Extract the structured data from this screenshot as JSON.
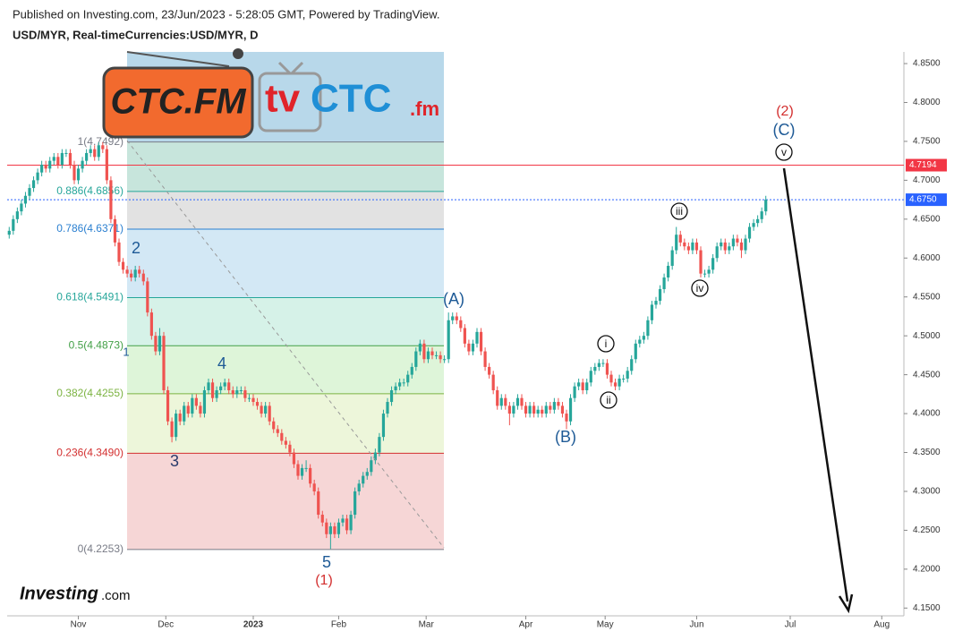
{
  "header": {
    "published": "Published on Investing.com, 23/Jun/2023 - 5:28:05 GMT, Powered by TradingView."
  },
  "logos": {
    "ctc": "CTC.FM",
    "tv": "tv",
    "tvctc": "CTC",
    "fm": ".fm",
    "investing": "Investing",
    "com": ".com"
  },
  "chart_data": {
    "type": "candlestick",
    "title": "USD/MYR, Real-timeCurrencies:USD/MYR, D",
    "up_color": "#26a69a",
    "down_color": "#ef5350",
    "open": [
      4.63,
      4.635,
      4.65,
      4.66,
      4.67,
      4.68,
      4.69,
      4.7,
      4.71,
      4.72,
      4.715,
      4.725,
      4.73,
      4.72,
      4.735,
      4.735,
      4.72,
      4.7,
      4.715,
      4.725,
      4.735,
      4.74,
      4.73,
      4.745,
      4.74,
      4.7,
      4.65,
      4.62,
      4.595,
      4.585,
      4.58,
      4.575,
      4.585,
      4.58,
      4.57,
      4.53,
      4.5,
      4.48,
      4.5,
      4.43,
      4.39,
      4.37,
      4.4,
      4.39,
      4.41,
      4.4,
      4.42,
      4.41,
      4.4,
      4.43,
      4.44,
      4.42,
      4.43,
      4.435,
      4.44,
      4.43,
      4.425,
      4.43,
      4.43,
      4.42,
      4.42,
      4.415,
      4.41,
      4.4,
      4.41,
      4.39,
      4.38,
      4.375,
      4.365,
      4.36,
      4.35,
      4.335,
      4.32,
      4.33,
      4.33,
      4.31,
      4.3,
      4.27,
      4.26,
      4.245,
      4.255,
      4.245,
      4.26,
      4.265,
      4.25,
      4.27,
      4.3,
      4.31,
      4.32,
      4.325,
      4.34,
      4.35,
      4.37,
      4.4,
      4.415,
      4.43,
      4.435,
      4.44,
      4.44,
      4.45,
      4.46,
      4.48,
      4.49,
      4.47,
      4.48,
      4.475,
      4.475,
      4.47,
      4.47,
      4.52,
      4.525,
      4.52,
      4.51,
      4.49,
      4.48,
      4.49,
      4.505,
      4.48,
      4.46,
      4.45,
      4.43,
      4.41,
      4.42,
      4.41,
      4.4,
      4.41,
      4.42,
      4.41,
      4.4,
      4.41,
      4.4,
      4.405,
      4.4,
      4.41,
      4.405,
      4.415,
      4.41,
      4.4,
      4.39,
      4.42,
      4.435,
      4.44,
      4.43,
      4.44,
      4.455,
      4.46,
      4.465,
      4.465,
      4.45,
      4.44,
      4.435,
      4.445,
      4.445,
      4.455,
      4.47,
      4.49,
      4.495,
      4.5,
      4.52,
      4.54,
      4.545,
      4.56,
      4.575,
      4.59,
      4.61,
      4.63,
      4.62,
      4.615,
      4.61,
      4.62,
      4.61,
      4.58,
      4.58,
      4.585,
      4.6,
      4.615,
      4.62,
      4.61,
      4.615,
      4.625,
      4.62,
      4.61,
      4.625,
      4.64,
      4.645,
      4.65,
      4.66
    ],
    "high": [
      4.64,
      4.655,
      4.665,
      4.675,
      4.685,
      4.695,
      4.705,
      4.715,
      4.725,
      4.725,
      4.73,
      4.735,
      4.735,
      4.74,
      4.74,
      4.74,
      4.725,
      4.72,
      4.73,
      4.74,
      4.745,
      4.745,
      4.749,
      4.749,
      4.745,
      4.705,
      4.655,
      4.625,
      4.6,
      4.59,
      4.585,
      4.59,
      4.59,
      4.585,
      4.575,
      4.535,
      4.505,
      4.51,
      4.505,
      4.435,
      4.395,
      4.405,
      4.405,
      4.415,
      4.415,
      4.425,
      4.425,
      4.415,
      4.435,
      4.445,
      4.445,
      4.435,
      4.44,
      4.445,
      4.445,
      4.435,
      4.435,
      4.435,
      4.435,
      4.425,
      4.425,
      4.42,
      4.415,
      4.415,
      4.415,
      4.395,
      4.385,
      4.38,
      4.37,
      4.365,
      4.355,
      4.34,
      4.335,
      4.34,
      4.335,
      4.315,
      4.305,
      4.275,
      4.265,
      4.26,
      4.26,
      4.265,
      4.27,
      4.27,
      4.275,
      4.305,
      4.315,
      4.325,
      4.33,
      4.345,
      4.355,
      4.375,
      4.405,
      4.42,
      4.435,
      4.44,
      4.445,
      4.445,
      4.455,
      4.465,
      4.485,
      4.495,
      4.495,
      4.485,
      4.485,
      4.48,
      4.48,
      4.475,
      4.53,
      4.53,
      4.53,
      4.525,
      4.515,
      4.495,
      4.495,
      4.51,
      4.51,
      4.485,
      4.465,
      4.455,
      4.435,
      4.425,
      4.425,
      4.415,
      4.415,
      4.425,
      4.425,
      4.415,
      4.415,
      4.415,
      4.41,
      4.41,
      4.415,
      4.415,
      4.42,
      4.42,
      4.415,
      4.405,
      4.425,
      4.44,
      4.445,
      4.445,
      4.445,
      4.46,
      4.465,
      4.47,
      4.47,
      4.47,
      4.455,
      4.445,
      4.45,
      4.45,
      4.46,
      4.475,
      4.495,
      4.5,
      4.505,
      4.525,
      4.545,
      4.55,
      4.565,
      4.58,
      4.595,
      4.615,
      4.64,
      4.635,
      4.625,
      4.62,
      4.625,
      4.625,
      4.615,
      4.585,
      4.59,
      4.605,
      4.62,
      4.625,
      4.625,
      4.62,
      4.63,
      4.63,
      4.625,
      4.63,
      4.645,
      4.65,
      4.655,
      4.665,
      4.68
    ],
    "low": [
      4.625,
      4.63,
      4.645,
      4.655,
      4.665,
      4.675,
      4.685,
      4.695,
      4.705,
      4.71,
      4.71,
      4.72,
      4.715,
      4.715,
      4.73,
      4.715,
      4.695,
      4.695,
      4.71,
      4.72,
      4.73,
      4.725,
      4.725,
      4.735,
      4.695,
      4.645,
      4.615,
      4.59,
      4.58,
      4.575,
      4.57,
      4.57,
      4.575,
      4.565,
      4.525,
      4.495,
      4.475,
      4.475,
      4.425,
      4.385,
      4.363,
      4.365,
      4.385,
      4.385,
      4.395,
      4.395,
      4.405,
      4.395,
      4.395,
      4.425,
      4.415,
      4.415,
      4.425,
      4.43,
      4.425,
      4.42,
      4.42,
      4.425,
      4.415,
      4.415,
      4.41,
      4.405,
      4.395,
      4.395,
      4.385,
      4.375,
      4.37,
      4.36,
      4.355,
      4.345,
      4.33,
      4.315,
      4.315,
      4.325,
      4.305,
      4.295,
      4.265,
      4.255,
      4.24,
      4.226,
      4.24,
      4.24,
      4.255,
      4.245,
      4.245,
      4.265,
      4.295,
      4.305,
      4.315,
      4.32,
      4.335,
      4.345,
      4.365,
      4.395,
      4.41,
      4.425,
      4.43,
      4.435,
      4.435,
      4.445,
      4.455,
      4.475,
      4.465,
      4.465,
      4.47,
      4.47,
      4.465,
      4.465,
      4.465,
      4.515,
      4.515,
      4.505,
      4.485,
      4.475,
      4.475,
      4.485,
      4.475,
      4.455,
      4.445,
      4.425,
      4.405,
      4.405,
      4.405,
      4.385,
      4.395,
      4.405,
      4.405,
      4.395,
      4.395,
      4.395,
      4.395,
      4.395,
      4.395,
      4.4,
      4.4,
      4.405,
      4.395,
      4.38,
      4.385,
      4.415,
      4.43,
      4.425,
      4.425,
      4.435,
      4.45,
      4.455,
      4.46,
      4.445,
      4.435,
      4.43,
      4.43,
      4.44,
      4.44,
      4.45,
      4.465,
      4.485,
      4.49,
      4.495,
      4.515,
      4.535,
      4.54,
      4.555,
      4.57,
      4.585,
      4.605,
      4.615,
      4.61,
      4.605,
      4.605,
      4.605,
      4.575,
      4.575,
      4.575,
      4.58,
      4.595,
      4.61,
      4.605,
      4.605,
      4.61,
      4.615,
      4.6,
      4.605,
      4.62,
      4.635,
      4.64,
      4.645,
      4.655
    ],
    "close": [
      4.635,
      4.65,
      4.66,
      4.67,
      4.68,
      4.69,
      4.7,
      4.71,
      4.72,
      4.715,
      4.725,
      4.73,
      4.72,
      4.735,
      4.735,
      4.72,
      4.7,
      4.715,
      4.725,
      4.735,
      4.74,
      4.73,
      4.745,
      4.74,
      4.7,
      4.65,
      4.62,
      4.595,
      4.585,
      4.58,
      4.575,
      4.585,
      4.58,
      4.57,
      4.53,
      4.5,
      4.48,
      4.5,
      4.43,
      4.39,
      4.37,
      4.4,
      4.39,
      4.41,
      4.4,
      4.42,
      4.41,
      4.4,
      4.43,
      4.44,
      4.42,
      4.43,
      4.435,
      4.44,
      4.43,
      4.425,
      4.43,
      4.43,
      4.42,
      4.42,
      4.415,
      4.41,
      4.4,
      4.41,
      4.39,
      4.38,
      4.375,
      4.365,
      4.36,
      4.35,
      4.335,
      4.32,
      4.33,
      4.33,
      4.31,
      4.3,
      4.27,
      4.26,
      4.245,
      4.255,
      4.245,
      4.26,
      4.265,
      4.25,
      4.27,
      4.3,
      4.31,
      4.32,
      4.325,
      4.34,
      4.35,
      4.37,
      4.4,
      4.415,
      4.43,
      4.435,
      4.44,
      4.44,
      4.45,
      4.46,
      4.48,
      4.49,
      4.47,
      4.48,
      4.475,
      4.475,
      4.47,
      4.47,
      4.52,
      4.525,
      4.52,
      4.51,
      4.49,
      4.48,
      4.49,
      4.505,
      4.48,
      4.46,
      4.45,
      4.43,
      4.41,
      4.42,
      4.41,
      4.4,
      4.41,
      4.42,
      4.41,
      4.4,
      4.41,
      4.4,
      4.405,
      4.4,
      4.41,
      4.405,
      4.415,
      4.41,
      4.4,
      4.39,
      4.42,
      4.435,
      4.44,
      4.43,
      4.44,
      4.455,
      4.46,
      4.465,
      4.465,
      4.45,
      4.44,
      4.435,
      4.445,
      4.445,
      4.455,
      4.47,
      4.49,
      4.495,
      4.5,
      4.52,
      4.54,
      4.545,
      4.56,
      4.575,
      4.59,
      4.61,
      4.63,
      4.62,
      4.615,
      4.61,
      4.62,
      4.61,
      4.58,
      4.58,
      4.585,
      4.6,
      4.615,
      4.62,
      4.61,
      4.615,
      4.625,
      4.62,
      4.61,
      4.625,
      4.64,
      4.645,
      4.65,
      4.66,
      4.675
    ],
    "xlim": [
      -0.5,
      219.5
    ],
    "xticks": [
      {
        "value": 17,
        "label": "Nov"
      },
      {
        "value": 38.5,
        "label": "Dec"
      },
      {
        "value": 60,
        "label": "2023"
      },
      {
        "value": 81,
        "label": "Feb"
      },
      {
        "value": 102.5,
        "label": "Mar"
      },
      {
        "value": 127,
        "label": "Apr"
      },
      {
        "value": 146.5,
        "label": "May"
      },
      {
        "value": 169,
        "label": "Jun"
      },
      {
        "value": 192,
        "label": "Jul"
      },
      {
        "value": 214.5,
        "label": "Aug"
      }
    ],
    "ylim": [
      4.14,
      4.865
    ],
    "yticks": [
      {
        "value": 4.15,
        "label": "4.1500"
      },
      {
        "value": 4.2,
        "label": "4.2000"
      },
      {
        "value": 4.25,
        "label": "4.2500"
      },
      {
        "value": 4.3,
        "label": "4.3000"
      },
      {
        "value": 4.35,
        "label": "4.3500"
      },
      {
        "value": 4.4,
        "label": "4.4000"
      },
      {
        "value": 4.45,
        "label": "4.4500"
      },
      {
        "value": 4.5,
        "label": "4.5000"
      },
      {
        "value": 4.55,
        "label": "4.5500"
      },
      {
        "value": 4.6,
        "label": "4.6000"
      },
      {
        "value": 4.65,
        "label": "4.6500"
      },
      {
        "value": 4.7,
        "label": "4.7000"
      },
      {
        "value": 4.75,
        "label": "4.7500"
      },
      {
        "value": 4.8,
        "label": "4.8000"
      },
      {
        "value": 4.85,
        "label": "4.8500"
      }
    ],
    "hlines": [
      {
        "value": 4.7194,
        "color": "#f23645"
      },
      {
        "value": 4.675,
        "label": "4.6750",
        "color": "#2962ff"
      }
    ],
    "fib_levels": [
      {
        "value": 4.7492,
        "label": "1(4.7492)",
        "color": "#787b86"
      },
      {
        "value": 4.6856,
        "label": "0.886(4.6856)",
        "color": "#26a69a"
      },
      {
        "value": 4.6371,
        "label": "0.786(4.6371)",
        "color": "#2a7fd0"
      },
      {
        "value": 4.5491,
        "label": "0.618(4.5491)",
        "color": "#26a69a"
      },
      {
        "value": 4.4873,
        "label": "0.5(4.4873)",
        "color": "#43a047"
      },
      {
        "value": 4.4255,
        "label": "0.382(4.4255)",
        "color": "#7cb342"
      },
      {
        "value": 4.349,
        "label": "0.236(4.3490)",
        "color": "#d32f2f"
      },
      {
        "value": 4.2253,
        "label": "0(4.2253)",
        "color": "#787b86"
      }
    ],
    "annotations": [
      "2",
      "1",
      "3",
      "4",
      "5",
      "(1)",
      "(A)",
      "(B)",
      "i",
      "ii",
      "iii",
      "iv",
      "v",
      "(C)",
      "(2)"
    ]
  }
}
